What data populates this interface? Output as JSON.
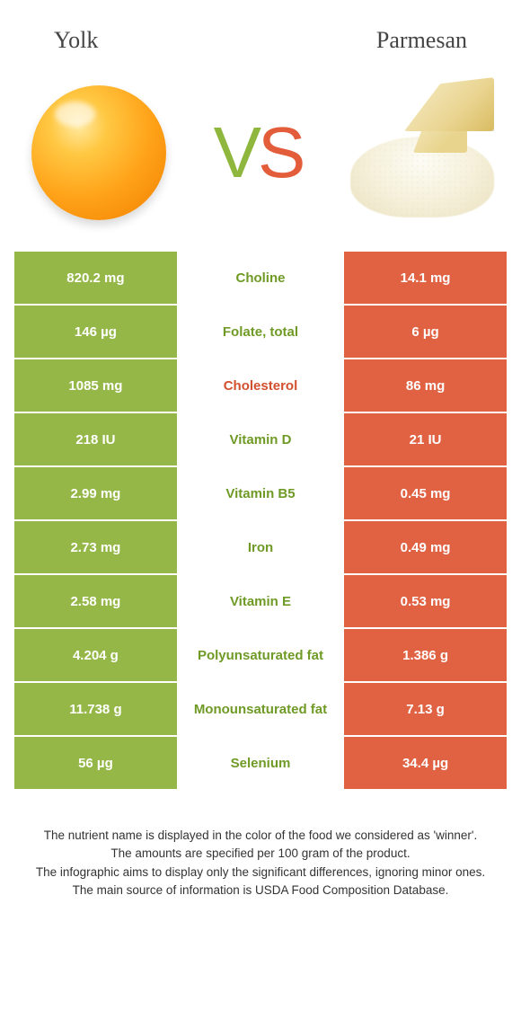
{
  "green": "#95b748",
  "orange": "#e06243",
  "green_text": "#6f9a26",
  "orange_text": "#d3502e",
  "left_food": "Yolk",
  "right_food": "Parmesan",
  "rows": [
    {
      "left": "820.2 mg",
      "name": "Choline",
      "right": "14.1 mg",
      "winner": "left"
    },
    {
      "left": "146 µg",
      "name": "Folate, total",
      "right": "6 µg",
      "winner": "left"
    },
    {
      "left": "1085 mg",
      "name": "Cholesterol",
      "right": "86 mg",
      "winner": "right"
    },
    {
      "left": "218 IU",
      "name": "Vitamin D",
      "right": "21 IU",
      "winner": "left"
    },
    {
      "left": "2.99 mg",
      "name": "Vitamin B5",
      "right": "0.45 mg",
      "winner": "left"
    },
    {
      "left": "2.73 mg",
      "name": "Iron",
      "right": "0.49 mg",
      "winner": "left"
    },
    {
      "left": "2.58 mg",
      "name": "Vitamin E",
      "right": "0.53 mg",
      "winner": "left"
    },
    {
      "left": "4.204 g",
      "name": "Polyunsaturated fat",
      "right": "1.386 g",
      "winner": "left"
    },
    {
      "left": "11.738 g",
      "name": "Monounsaturated fat",
      "right": "7.13 g",
      "winner": "left"
    },
    {
      "left": "56 µg",
      "name": "Selenium",
      "right": "34.4 µg",
      "winner": "left"
    }
  ],
  "footer": [
    "The nutrient name is displayed in the color of the food we considered as 'winner'.",
    "The amounts are specified per 100 gram of the product.",
    "The infographic aims to display only the significant differences, ignoring minor ones.",
    "The main source of information is USDA Food Composition Database."
  ]
}
